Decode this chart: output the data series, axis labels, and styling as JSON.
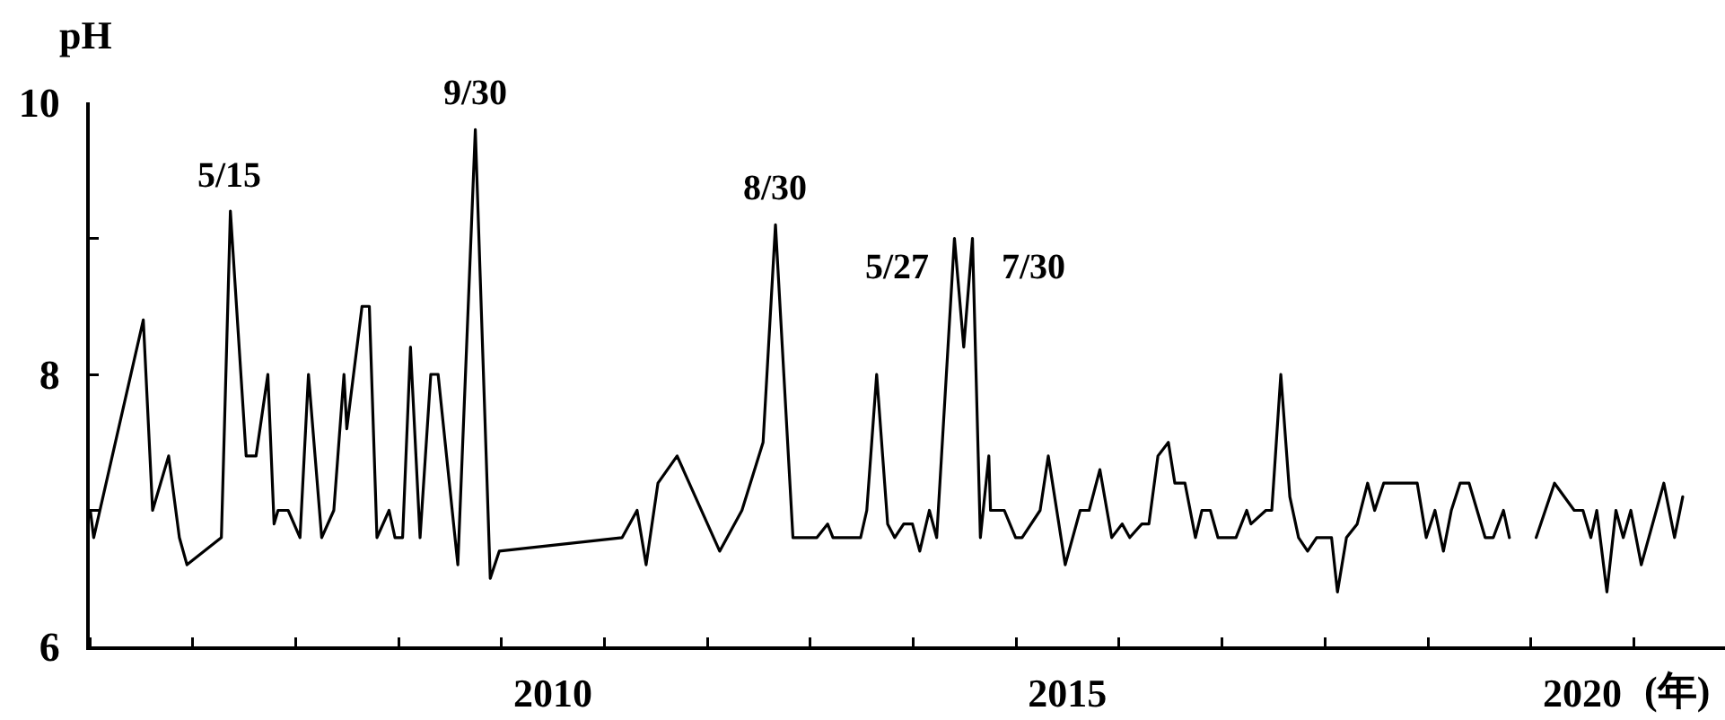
{
  "chart_data": {
    "type": "line",
    "ylabel": "pH",
    "xlabel": "(年)",
    "color": "#000000",
    "line_style": "solid",
    "xlim": [
      "2006-01-01",
      "2021-11-20"
    ],
    "ylim": [
      6,
      10
    ],
    "yticks": [
      6,
      {
        "value": 7,
        "label": null
      },
      8,
      {
        "value": 9,
        "label": null
      },
      10
    ],
    "xticks": [
      {
        "value": "2006-01-01",
        "label": null
      },
      {
        "value": "2007-01-01",
        "label": null
      },
      {
        "value": "2008-01-01",
        "label": null
      },
      {
        "value": "2009-01-01",
        "label": null
      },
      {
        "value": "2010-01-01",
        "label": null
      },
      {
        "value": "2010-07-02",
        "label": "2010"
      },
      {
        "value": "2011-01-01",
        "label": null
      },
      {
        "value": "2012-01-01",
        "label": null
      },
      {
        "value": "2013-01-01",
        "label": null
      },
      {
        "value": "2014-01-01",
        "label": null
      },
      {
        "value": "2015-01-01",
        "label": null
      },
      {
        "value": "2015-07-02",
        "label": "2015"
      },
      {
        "value": "2016-01-01",
        "label": null
      },
      {
        "value": "2017-01-01",
        "label": null
      },
      {
        "value": "2018-01-01",
        "label": null
      },
      {
        "value": "2019-01-01",
        "label": null
      },
      {
        "value": "2020-01-01",
        "label": null
      },
      {
        "value": "2020-07-02",
        "label": "2020"
      },
      {
        "value": "2021-01-01",
        "label": null
      }
    ],
    "annotations": [
      {
        "text": "5/15",
        "x": "2007-05-15",
        "y": 9.2
      },
      {
        "text": "9/30",
        "x": "2009-09-30",
        "y": 9.8
      },
      {
        "text": "8/30",
        "x": "2012-08-30",
        "y": 9.1
      },
      {
        "text": "5/27",
        "x": "2014-05-27",
        "y": 9.0
      },
      {
        "text": "7/30",
        "x": "2014-07-30",
        "y": 9.0
      }
    ],
    "x": [
      "2006-01-03",
      "2006-01-15",
      "2006-07-10",
      "2006-08-12",
      "2006-10-08",
      "2006-11-15",
      "2006-12-12",
      "2007-04-13",
      "2007-05-15",
      "2007-07-10",
      "2007-08-14",
      "2007-09-25",
      "2007-10-17",
      "2007-10-31",
      "2007-12-06",
      "2008-01-17",
      "2008-02-16",
      "2008-04-03",
      "2008-05-16",
      "2008-06-21",
      "2008-07-01",
      "2008-08-24",
      "2008-09-19",
      "2008-10-16",
      "2008-11-28",
      "2008-12-19",
      "2009-01-15",
      "2009-02-12",
      "2009-03-18",
      "2009-04-25",
      "2009-05-21",
      "2009-07-30",
      "2009-09-30",
      "2009-11-22",
      "2009-12-24",
      "2011-03-05",
      "2011-04-27",
      "2011-05-29",
      "2011-07-10",
      "2011-09-16",
      "2012-02-14",
      "2012-05-03",
      "2012-07-17",
      "2012-08-30",
      "2012-10-31",
      "2013-01-24",
      "2013-03-03",
      "2013-03-22",
      "2013-06-28",
      "2013-07-20",
      "2013-08-24",
      "2013-10-02",
      "2013-10-27",
      "2013-11-28",
      "2013-12-29",
      "2014-01-24",
      "2014-02-27",
      "2014-03-25",
      "2014-05-27",
      "2014-06-29",
      "2014-07-30",
      "2014-08-27",
      "2014-09-26",
      "2014-10-02",
      "2014-11-20",
      "2014-12-30",
      "2015-01-22",
      "2015-03-27",
      "2015-04-25",
      "2015-06-24",
      "2015-08-16",
      "2015-09-17",
      "2015-10-25",
      "2015-12-06",
      "2016-01-12",
      "2016-02-08",
      "2016-03-22",
      "2016-04-16",
      "2016-05-18",
      "2016-06-24",
      "2016-07-17",
      "2016-08-22",
      "2016-09-28",
      "2016-10-21",
      "2016-11-20",
      "2016-12-17",
      "2017-02-19",
      "2017-03-29",
      "2017-04-13",
      "2017-06-05",
      "2017-06-26",
      "2017-07-28",
      "2017-08-29",
      "2017-09-29",
      "2017-10-31",
      "2017-12-02",
      "2018-01-24",
      "2018-02-14",
      "2018-03-18",
      "2018-04-25",
      "2018-06-01",
      "2018-06-26",
      "2018-07-28",
      "2018-11-24",
      "2018-12-26",
      "2019-01-26",
      "2019-02-25",
      "2019-03-25",
      "2019-04-25",
      "2019-05-27",
      "2019-07-23",
      "2019-08-21",
      "2019-09-26",
      "2019-10-17",
      "2019-12-01",
      "2020-01-20",
      "2020-03-25",
      "2020-06-03",
      "2020-07-04",
      "2020-08-01",
      "2020-08-22",
      "2020-09-27",
      "2020-10-29",
      "2020-11-24",
      "2020-12-21",
      "2021-01-27",
      "2021-04-17",
      "2021-05-25",
      "2021-06-23"
    ],
    "values": [
      7.0,
      6.8,
      8.4,
      7.0,
      7.4,
      6.8,
      6.6,
      6.8,
      9.2,
      7.4,
      7.4,
      8.0,
      6.9,
      7.0,
      7.0,
      6.8,
      8.0,
      6.8,
      7.0,
      8.0,
      7.6,
      8.5,
      8.5,
      6.8,
      7.0,
      6.8,
      6.8,
      8.2,
      6.8,
      8.0,
      8.0,
      6.6,
      9.8,
      6.5,
      6.7,
      6.8,
      7.0,
      6.6,
      7.2,
      7.4,
      6.7,
      7.0,
      7.5,
      9.1,
      6.8,
      6.8,
      6.9,
      6.8,
      6.8,
      7.0,
      8.0,
      6.9,
      6.8,
      6.9,
      6.9,
      6.7,
      7.0,
      6.8,
      9.0,
      8.2,
      9.0,
      6.8,
      7.4,
      7.0,
      7.0,
      6.8,
      6.8,
      7.0,
      7.4,
      6.6,
      7.0,
      7.0,
      7.3,
      6.8,
      6.9,
      6.8,
      6.9,
      6.9,
      7.4,
      7.5,
      7.2,
      7.2,
      6.8,
      7.0,
      7.0,
      6.8,
      6.8,
      7.0,
      6.9,
      7.0,
      7.0,
      8.0,
      7.1,
      6.8,
      6.7,
      6.8,
      6.8,
      6.4,
      6.8,
      6.9,
      7.2,
      7.0,
      7.2,
      7.2,
      6.8,
      7.0,
      6.7,
      7.0,
      7.2,
      7.2,
      6.8,
      6.8,
      7.0,
      6.8,
      null,
      6.8,
      7.2,
      7.0,
      7.0,
      6.8,
      7.0,
      6.4,
      7.0,
      6.8,
      7.0,
      6.6,
      7.2,
      6.8,
      7.1
    ]
  }
}
